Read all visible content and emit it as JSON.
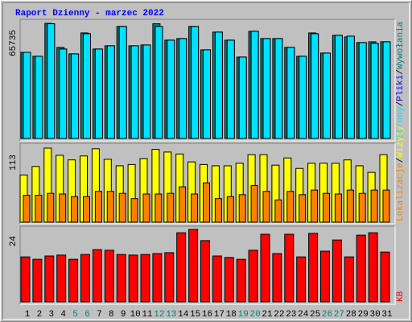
{
  "separator": "/",
  "chart_data": [
    {
      "type": "bar",
      "title": "Raport Dzienny -  marzec 2022",
      "ylim": [
        0,
        65735
      ],
      "yticks": [
        65735
      ],
      "series": [
        {
          "name": "Wywołania",
          "color": "#008080",
          "values": [
            49180,
            46920,
            65735,
            51980,
            48300,
            60260,
            51060,
            52900,
            63940,
            52900,
            53360,
            65500,
            56120,
            57040,
            63940,
            50600,
            60720,
            56120,
            46460,
            61180,
            57040,
            57040,
            51980,
            46920,
            60260,
            48760,
            58880,
            57960,
            54740,
            55200,
            55200
          ]
        },
        {
          "name": "Pliki",
          "color": "#0000ff",
          "values": [
            49180,
            46920,
            65500,
            51060,
            48300,
            59800,
            51060,
            52900,
            63940,
            52900,
            53360,
            63940,
            56120,
            57040,
            63940,
            50600,
            60720,
            56120,
            46460,
            61180,
            57040,
            57040,
            51980,
            46920,
            59800,
            48760,
            58880,
            58420,
            54740,
            54280,
            55200
          ]
        },
        {
          "name": "Strony",
          "color": "#00e0ff",
          "values": [
            49180,
            46920,
            65500,
            51060,
            48300,
            59800,
            51060,
            52900,
            63940,
            52900,
            53360,
            63940,
            56120,
            57040,
            63940,
            50600,
            60720,
            56120,
            46460,
            61180,
            57040,
            57040,
            51980,
            46920,
            59800,
            48760,
            58880,
            58420,
            54740,
            54280,
            55200
          ]
        }
      ]
    },
    {
      "type": "bar",
      "ylim": [
        0,
        113
      ],
      "yticks": [
        113
      ],
      "series": [
        {
          "name": "Wizyty",
          "color": "#ffff00",
          "values": [
            72,
            85,
            113,
            102,
            95,
            101,
            112,
            96,
            86,
            88,
            97,
            111,
            107,
            104,
            92,
            88,
            86,
            86,
            90,
            103,
            103,
            87,
            98,
            82,
            90,
            90,
            90,
            95,
            86,
            76,
            103
          ]
        },
        {
          "name": "Lokalizacje",
          "color": "#ff8000",
          "values": [
            41,
            41,
            44,
            43,
            39,
            39,
            47,
            47,
            44,
            36,
            43,
            43,
            44,
            54,
            43,
            60,
            36,
            39,
            42,
            56,
            47,
            34,
            47,
            42,
            49,
            44,
            43,
            49,
            44,
            49,
            49
          ]
        }
      ]
    },
    {
      "type": "bar",
      "ylim": [
        0,
        24
      ],
      "yticks": [
        24
      ],
      "categories": [
        "1",
        "2",
        "3",
        "4",
        "5",
        "6",
        "7",
        "8",
        "9",
        "10",
        "11",
        "12",
        "13",
        "14",
        "15",
        "16",
        "17",
        "18",
        "19",
        "20",
        "21",
        "22",
        "23",
        "24",
        "25",
        "26",
        "27",
        "28",
        "29",
        "30",
        "31"
      ],
      "category_colors": [
        "#000000",
        "#000000",
        "#000000",
        "#000000",
        "#008080",
        "#008080",
        "#000000",
        "#000000",
        "#000000",
        "#000000",
        "#000000",
        "#008080",
        "#008080",
        "#000000",
        "#000000",
        "#000000",
        "#000000",
        "#000000",
        "#008080",
        "#008080",
        "#000000",
        "#000000",
        "#000000",
        "#000000",
        "#000000",
        "#008080",
        "#008080",
        "#000000",
        "#000000",
        "#000000",
        "#000000"
      ],
      "series": [
        {
          "name": "KB",
          "color": "#ff0000",
          "values": [
            14.9,
            14.1,
            15.2,
            15.5,
            14.1,
            15.7,
            17.3,
            17.1,
            15.7,
            15.5,
            15.7,
            16.0,
            16.3,
            22.9,
            24,
            20.3,
            15.2,
            14.7,
            14.1,
            17.1,
            22.4,
            16.0,
            22.4,
            14.9,
            22.7,
            16.8,
            20.5,
            14.9,
            22.1,
            22.9,
            16.5
          ]
        }
      ]
    }
  ]
}
